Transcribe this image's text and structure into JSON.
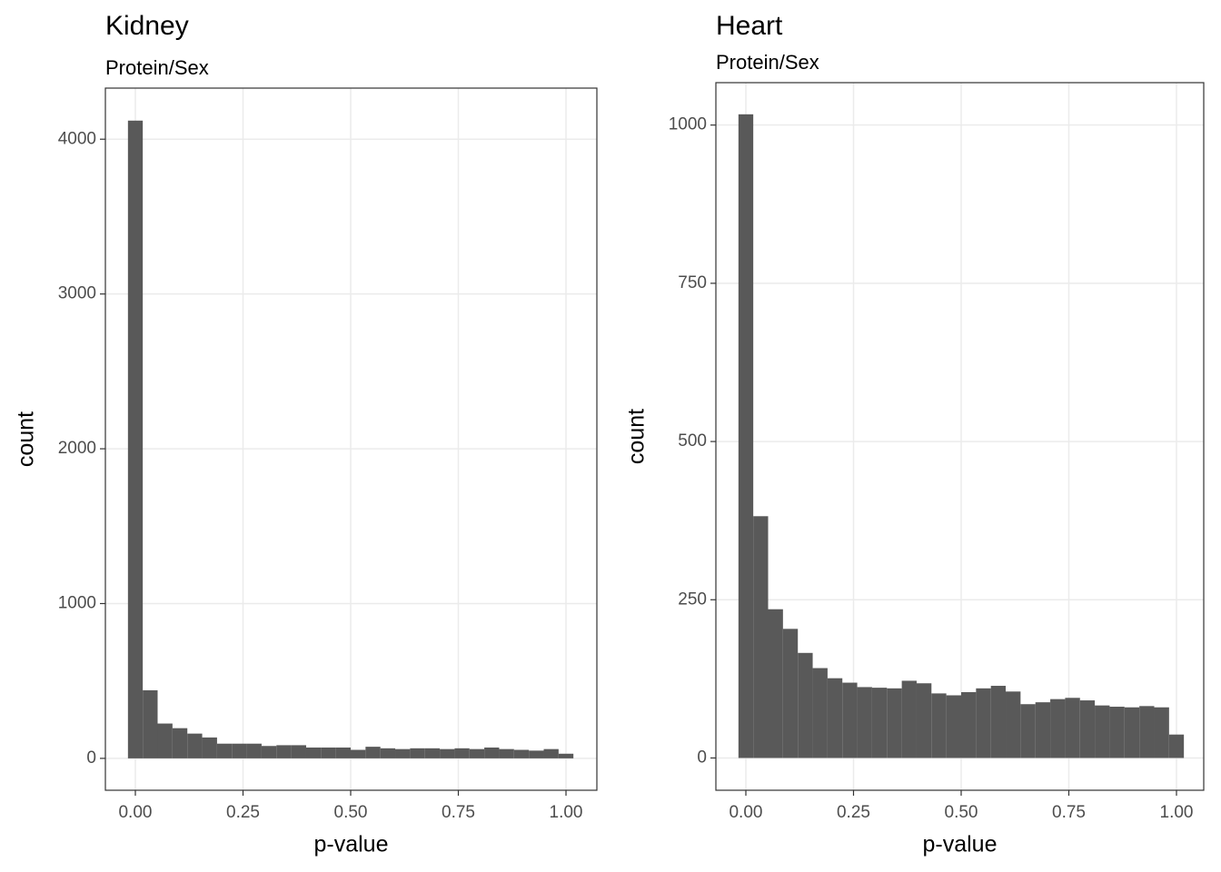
{
  "chart_data": [
    {
      "type": "histogram",
      "title": "Kidney",
      "subtitle": "Protein/Sex",
      "x_label": "p-value",
      "y_label": "count",
      "bins": [
        -0.0172,
        0.0172,
        0.0517,
        0.0862,
        0.1207,
        0.1552,
        0.1897,
        0.2241,
        0.2586,
        0.2931,
        0.3276,
        0.3621,
        0.3966,
        0.431,
        0.4655,
        0.5,
        0.5345,
        0.569,
        0.6034,
        0.6379,
        0.6724,
        0.7069,
        0.7414,
        0.7759,
        0.8103,
        0.8448,
        0.8793,
        0.9138,
        0.9483,
        0.9828,
        1.0172
      ],
      "counts": [
        4120,
        440,
        225,
        195,
        160,
        135,
        95,
        95,
        95,
        80,
        85,
        85,
        70,
        70,
        70,
        55,
        75,
        65,
        60,
        65,
        65,
        60,
        65,
        60,
        70,
        60,
        55,
        50,
        60,
        30
      ],
      "color": "#595959",
      "xlim": [
        -0.0696,
        1.0717
      ],
      "ylim": [
        -206,
        4330
      ],
      "xticks": [
        {
          "value": 0,
          "label": "0.00"
        },
        {
          "value": 0.25,
          "label": "0.25"
        },
        {
          "value": 0.5,
          "label": "0.50"
        },
        {
          "value": 0.75,
          "label": "0.75"
        },
        {
          "value": 1,
          "label": "1.00"
        }
      ],
      "yticks": [
        0,
        1000,
        2000,
        3000,
        4000
      ],
      "grid": true
    },
    {
      "type": "histogram",
      "title": "Heart",
      "subtitle": "Protein/Sex",
      "x_label": "p-value",
      "y_label": "count",
      "bins": [
        -0.0172,
        0.0172,
        0.0517,
        0.0862,
        0.1207,
        0.1552,
        0.1897,
        0.2241,
        0.2586,
        0.2931,
        0.3276,
        0.3621,
        0.3966,
        0.431,
        0.4655,
        0.5,
        0.5345,
        0.569,
        0.6034,
        0.6379,
        0.6724,
        0.7069,
        0.7414,
        0.7759,
        0.8103,
        0.8448,
        0.8793,
        0.9138,
        0.9483,
        0.9828,
        1.0172
      ],
      "counts": [
        1017,
        382,
        235,
        204,
        166,
        142,
        126,
        119,
        112,
        111,
        110,
        122,
        118,
        102,
        99,
        104,
        110,
        114,
        105,
        85,
        88,
        93,
        95,
        91,
        83,
        81,
        80,
        82,
        80,
        37
      ],
      "color": "#595959",
      "xlim": [
        -0.0696,
        1.0633
      ],
      "ylim": [
        -51,
        1067
      ],
      "xticks": [
        {
          "value": 0,
          "label": "0.00"
        },
        {
          "value": 0.25,
          "label": "0.25"
        },
        {
          "value": 0.5,
          "label": "0.50"
        },
        {
          "value": 0.75,
          "label": "0.75"
        },
        {
          "value": 1,
          "label": "1.00"
        }
      ],
      "yticks": [
        0,
        250,
        500,
        750,
        1000
      ],
      "grid": true
    }
  ]
}
